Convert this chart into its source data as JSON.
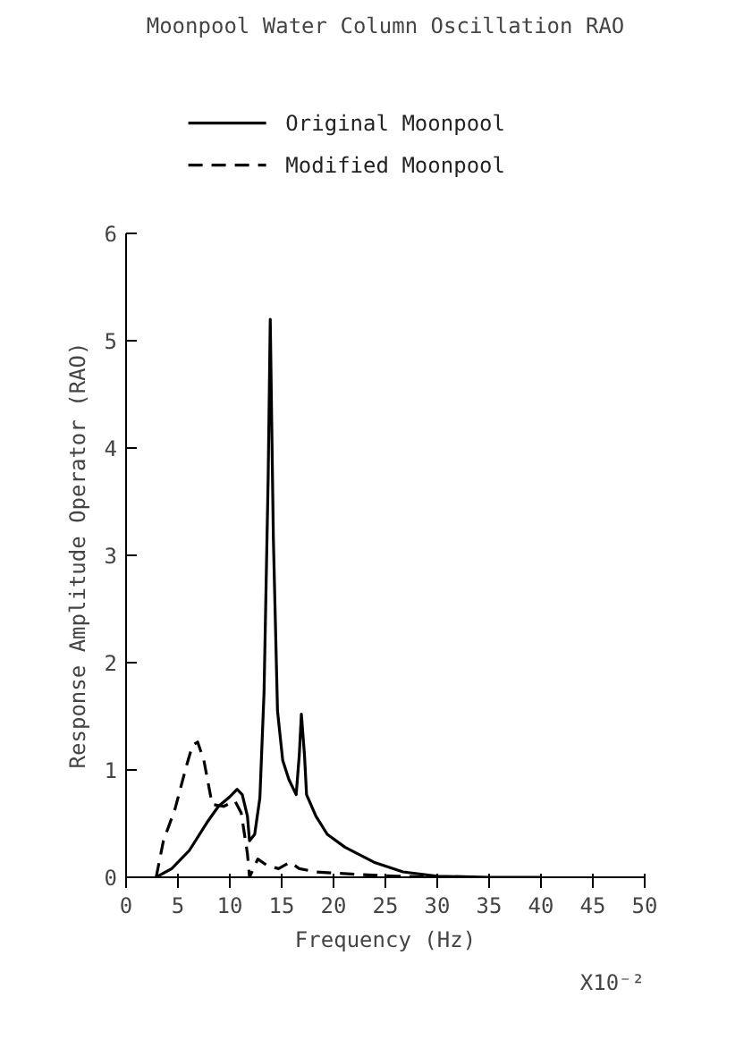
{
  "chart_data": {
    "type": "line",
    "title": "Moonpool Water Column Oscillation RAO",
    "xlabel": "Frequency (Hz)",
    "ylabel": "Response Amplitude Operator (RAO)",
    "annotations": [
      "X10⁻²"
    ],
    "xlim": [
      0,
      50
    ],
    "xticks": [
      0,
      5,
      10,
      15,
      20,
      25,
      30,
      35,
      40,
      45,
      50
    ],
    "ylim": [
      0,
      6
    ],
    "yticks": [
      0,
      1,
      2,
      3,
      4,
      5,
      6
    ],
    "grid": false,
    "legend": "top",
    "series": [
      {
        "name": "Original Moonpool",
        "color": "#000000",
        "line_style": "solid",
        "x": [
          2.9,
          4.4,
          6.1,
          7.8,
          8.9,
          10,
          10.7,
          11.2,
          11.7,
          11.9,
          12.4,
          12.9,
          13.3,
          13.7,
          13.9,
          14.2,
          14.6,
          15.1,
          15.7,
          16.4,
          16.7,
          16.9,
          17.2,
          17.4,
          18.3,
          19.4,
          21.1,
          23.9,
          26.7,
          30,
          35,
          40
        ],
        "values": [
          0,
          0.08,
          0.25,
          0.51,
          0.66,
          0.75,
          0.82,
          0.77,
          0.57,
          0.34,
          0.4,
          0.74,
          1.72,
          3.73,
          5.2,
          3.16,
          1.55,
          1.09,
          0.91,
          0.77,
          1.14,
          1.52,
          1.14,
          0.77,
          0.57,
          0.4,
          0.28,
          0.14,
          0.05,
          0.01,
          0,
          0
        ]
      },
      {
        "name": "Modified Moonpool",
        "color": "#000000",
        "line_style": "dashed",
        "x": [
          2.9,
          3.6,
          4.7,
          5.8,
          6.4,
          6.9,
          7.5,
          8.3,
          9.4,
          10.5,
          11.1,
          11.7,
          11.9,
          12.7,
          13.6,
          14.7,
          15.8,
          16.7,
          18.3,
          21.7,
          26.1,
          30
        ],
        "values": [
          0,
          0.34,
          0.63,
          1.03,
          1.23,
          1.26,
          1.09,
          0.68,
          0.66,
          0.71,
          0.6,
          0.22,
          0,
          0.17,
          0.11,
          0.08,
          0.14,
          0.08,
          0.05,
          0.03,
          0.01,
          0
        ]
      }
    ]
  }
}
